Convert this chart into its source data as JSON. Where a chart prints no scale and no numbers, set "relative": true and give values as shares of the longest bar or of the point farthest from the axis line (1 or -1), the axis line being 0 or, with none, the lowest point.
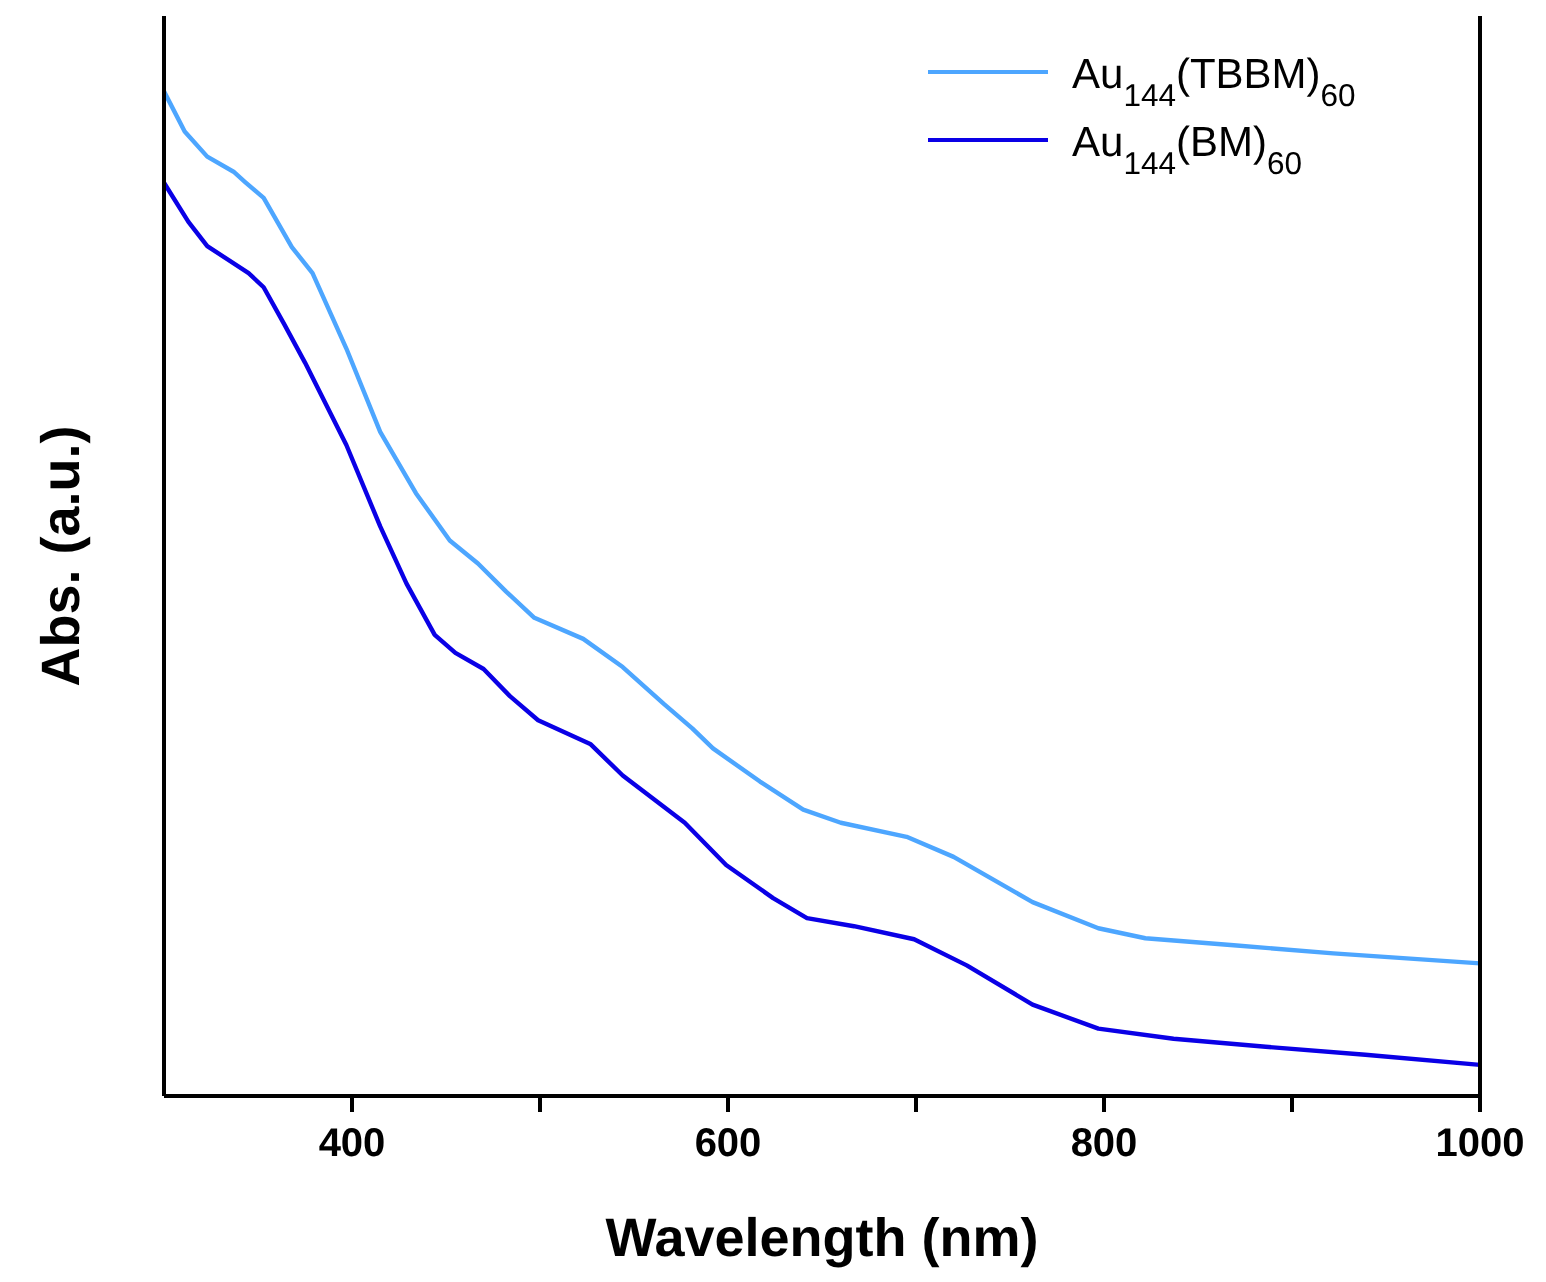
{
  "chart_data": {
    "type": "line",
    "relative": true,
    "xlabel": "Wavelength (nm)",
    "ylabel": "Abs. (a.u.)",
    "xlim": [
      300,
      1000
    ],
    "xticks": [
      400,
      {
        "value": 500,
        "label": null
      },
      600,
      {
        "value": 700,
        "label": null
      },
      800,
      {
        "value": 900,
        "label": null
      },
      1000
    ],
    "legend": "top right",
    "line_style": "solid",
    "marker": "none",
    "grid": false,
    "series": [
      {
        "name": "Au$_{144}$(TBBM)$_{60}$",
        "color": "#4da6ff",
        "x": [
          300,
          311,
          323,
          337,
          343,
          353,
          368,
          379,
          397,
          415,
          434,
          452,
          467,
          482,
          497,
          523,
          544,
          566,
          581,
          592,
          617,
          640,
          660,
          695,
          720,
          762,
          797,
          822,
          869,
          922,
          1000
        ],
        "values": [
          1.0,
          0.96,
          0.935,
          0.92,
          0.91,
          0.894,
          0.845,
          0.819,
          0.744,
          0.661,
          0.6,
          0.553,
          0.53,
          0.502,
          0.476,
          0.455,
          0.427,
          0.39,
          0.366,
          0.346,
          0.313,
          0.285,
          0.272,
          0.258,
          0.238,
          0.193,
          0.167,
          0.157,
          0.15,
          0.142,
          0.132
        ]
      },
      {
        "name": "Au$_{144}$(BM)$_{60}$",
        "color": "#0a00e6",
        "x": [
          300,
          313,
          323,
          345,
          353,
          364,
          375,
          386,
          397,
          415,
          429,
          444,
          455,
          470,
          484,
          499,
          527,
          544,
          577,
          599,
          624,
          642,
          667,
          699,
          727,
          762,
          797,
          837,
          886,
          939,
          1000
        ],
        "values": [
          0.909,
          0.87,
          0.846,
          0.819,
          0.805,
          0.768,
          0.73,
          0.689,
          0.648,
          0.567,
          0.51,
          0.459,
          0.441,
          0.425,
          0.398,
          0.374,
          0.35,
          0.319,
          0.272,
          0.23,
          0.197,
          0.177,
          0.169,
          0.156,
          0.13,
          0.091,
          0.067,
          0.057,
          0.049,
          0.041,
          0.031
        ]
      }
    ]
  }
}
